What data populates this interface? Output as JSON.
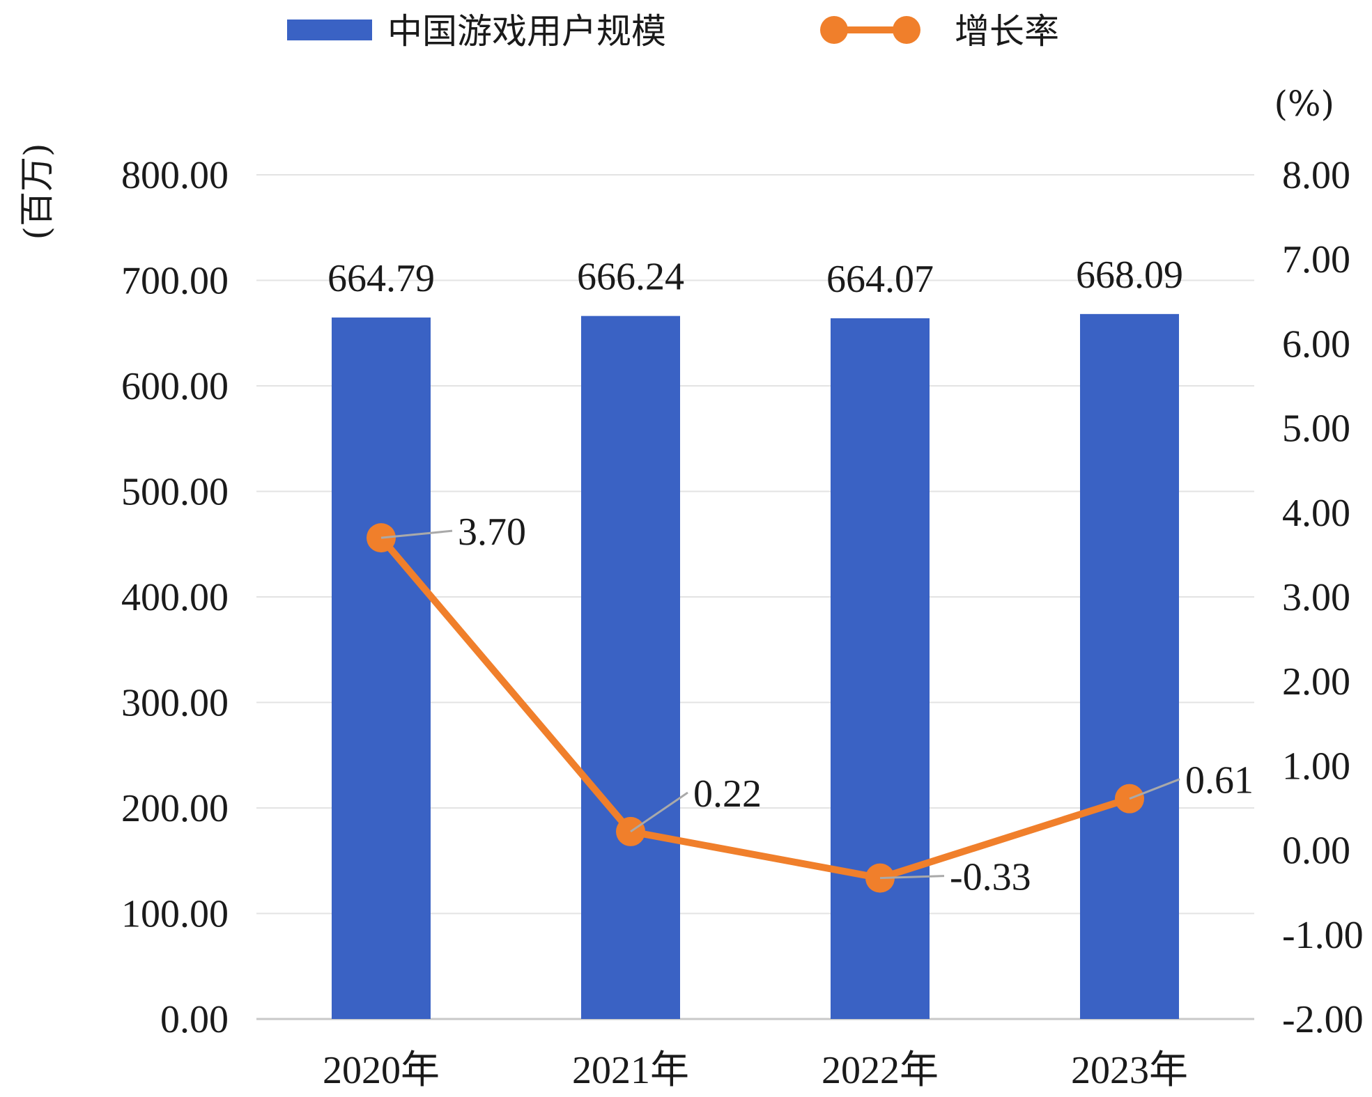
{
  "chart_data": {
    "type": "bar",
    "categories": [
      "2020年",
      "2021年",
      "2022年",
      "2023年"
    ],
    "series": [
      {
        "name": "中国游戏用户规模",
        "type": "bar",
        "axis": "left",
        "values": [
          664.79,
          666.24,
          664.07,
          668.09
        ],
        "labels": [
          "664.79",
          "666.24",
          "664.07",
          "668.09"
        ],
        "color": "#3a62c4"
      },
      {
        "name": "增长率",
        "type": "line",
        "axis": "right",
        "values": [
          3.7,
          0.22,
          -0.33,
          0.61
        ],
        "labels": [
          "3.70",
          "0.22",
          "-0.33",
          "0.61"
        ],
        "color": "#f07f2b"
      }
    ],
    "ylabel_left": "(百万)",
    "ylabel_right": "(%)",
    "ylim_left": [
      0,
      800
    ],
    "ylim_right": [
      -2,
      8
    ],
    "yticks_left": [
      "0.00",
      "100.00",
      "200.00",
      "300.00",
      "400.00",
      "500.00",
      "600.00",
      "700.00",
      "800.00"
    ],
    "yticks_right": [
      "-2.00",
      "-1.00",
      "0.00",
      "1.00",
      "2.00",
      "3.00",
      "4.00",
      "5.00",
      "6.00",
      "7.00",
      "8.00"
    ],
    "grid": true,
    "legend_position": "top"
  }
}
